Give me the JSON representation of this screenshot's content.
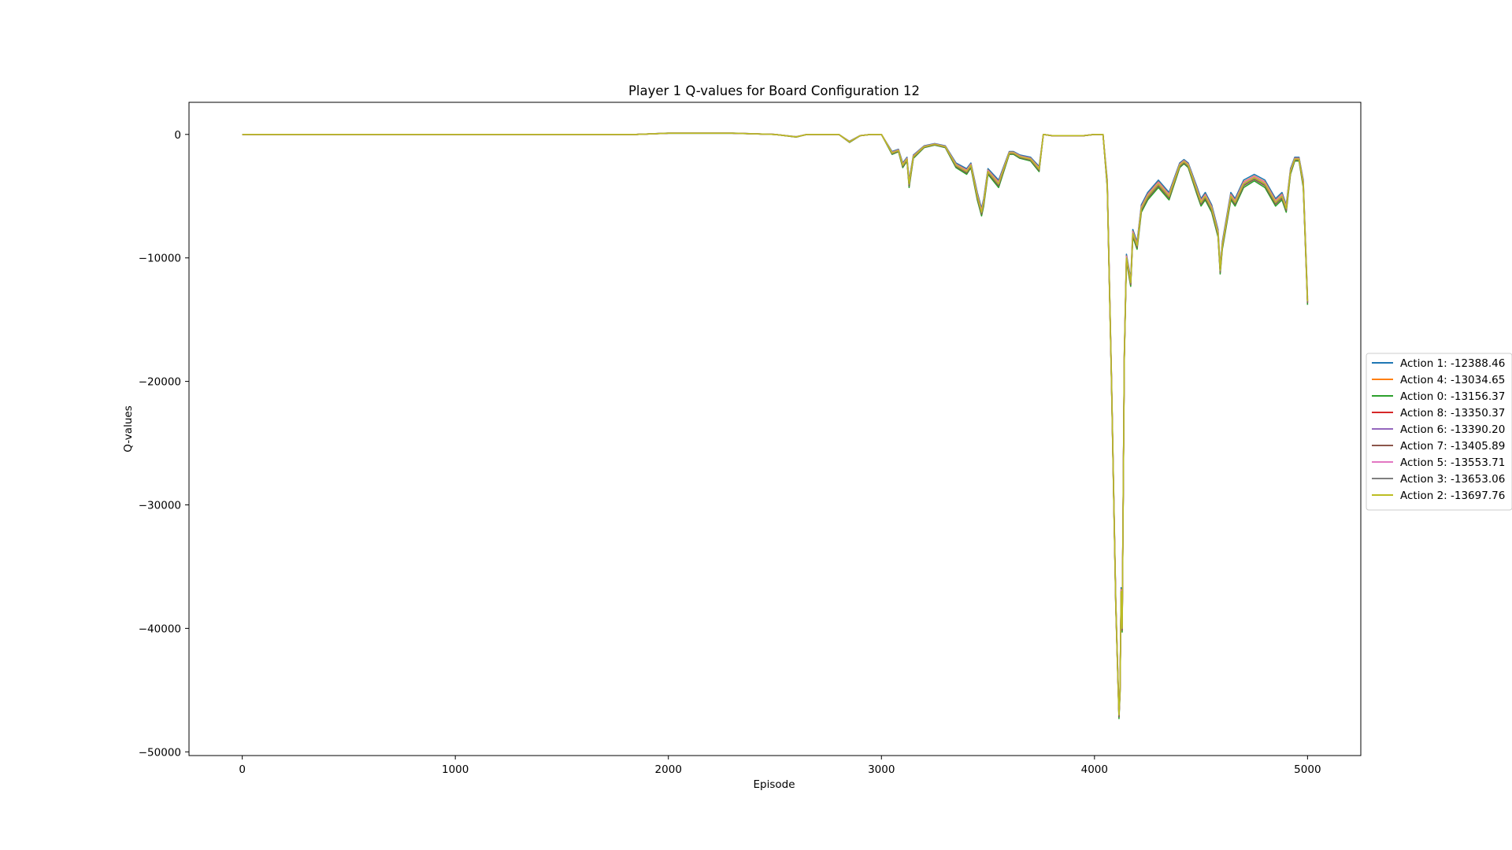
{
  "chart_data": {
    "type": "line",
    "title": "Player 1 Q-values for Board Configuration 12",
    "xlabel": "Episode",
    "ylabel": "Q-values",
    "xlim": [
      -250,
      5250
    ],
    "ylim": [
      -50300,
      2600
    ],
    "xticks": [
      0,
      1000,
      2000,
      3000,
      4000,
      5000
    ],
    "xtick_labels": [
      "0",
      "1000",
      "2000",
      "3000",
      "4000",
      "5000"
    ],
    "yticks": [
      0,
      -10000,
      -20000,
      -30000,
      -40000,
      -50000
    ],
    "ytick_labels": [
      "0",
      "−10000",
      "−20000",
      "−30000",
      "−40000",
      "−50000"
    ],
    "grid": false,
    "legend_position": "right, outside plot area",
    "x": [
      0,
      500,
      1000,
      1500,
      1850,
      2000,
      2300,
      2500,
      2600,
      2650,
      2700,
      2800,
      2850,
      2900,
      2950,
      3000,
      3050,
      3080,
      3100,
      3120,
      3130,
      3150,
      3200,
      3250,
      3300,
      3350,
      3400,
      3420,
      3450,
      3470,
      3480,
      3500,
      3550,
      3600,
      3620,
      3650,
      3700,
      3740,
      3760,
      3800,
      3850,
      3900,
      3950,
      4000,
      4040,
      4060,
      4080,
      4100,
      4110,
      4115,
      4120,
      4125,
      4130,
      4140,
      4150,
      4160,
      4170,
      4180,
      4200,
      4220,
      4250,
      4300,
      4350,
      4400,
      4420,
      4440,
      4480,
      4500,
      4520,
      4550,
      4580,
      4590,
      4600,
      4620,
      4640,
      4660,
      4700,
      4750,
      4800,
      4850,
      4880,
      4900,
      4920,
      4940,
      4960,
      4980,
      5000
    ],
    "series": [
      {
        "name": "Action 1: -12388.46",
        "color": "#1f77b4",
        "offset": 300
      },
      {
        "name": "Action 4: -13034.65",
        "color": "#ff7f0e",
        "offset": 150
      },
      {
        "name": "Action 0: -13156.37",
        "color": "#2ca02c",
        "offset": -300
      },
      {
        "name": "Action 8: -13350.37",
        "color": "#d62728",
        "offset": -100
      },
      {
        "name": "Action 6: -13390.20",
        "color": "#9467bd",
        "offset": 50
      },
      {
        "name": "Action 7: -13405.89",
        "color": "#8c564b",
        "offset": -150
      },
      {
        "name": "Action 5: -13553.71",
        "color": "#e377c2",
        "offset": 100
      },
      {
        "name": "Action 3: -13653.06",
        "color": "#7f7f7f",
        "offset": -50
      },
      {
        "name": "Action 2: -13697.76",
        "color": "#bcbd22",
        "offset": 0
      }
    ],
    "base_values": [
      0,
      0,
      0,
      0,
      0,
      100,
      100,
      0,
      -200,
      0,
      0,
      0,
      -600,
      -100,
      0,
      0,
      -1500,
      -1300,
      -2500,
      -2000,
      -4000,
      -1800,
      -1000,
      -800,
      -1000,
      -2500,
      -3000,
      -2500,
      -5000,
      -6300,
      -5500,
      -3000,
      -4000,
      -1500,
      -1500,
      -1800,
      -2000,
      -2800,
      0,
      -100,
      -100,
      -100,
      -100,
      0,
      0,
      -4000,
      -20000,
      -38000,
      -44000,
      -47000,
      -45000,
      -37000,
      -40000,
      -18000,
      -10000,
      -11000,
      -12000,
      -8000,
      -9000,
      -6000,
      -5000,
      -4000,
      -5000,
      -2500,
      -2200,
      -2500,
      -4500,
      -5500,
      -5000,
      -6000,
      -8000,
      -11000,
      -9000,
      -7000,
      -5000,
      -5500,
      -4000,
      -3500,
      -4000,
      -5500,
      -5000,
      -6000,
      -3000,
      -2000,
      -2000,
      -4000,
      -13500
    ]
  }
}
